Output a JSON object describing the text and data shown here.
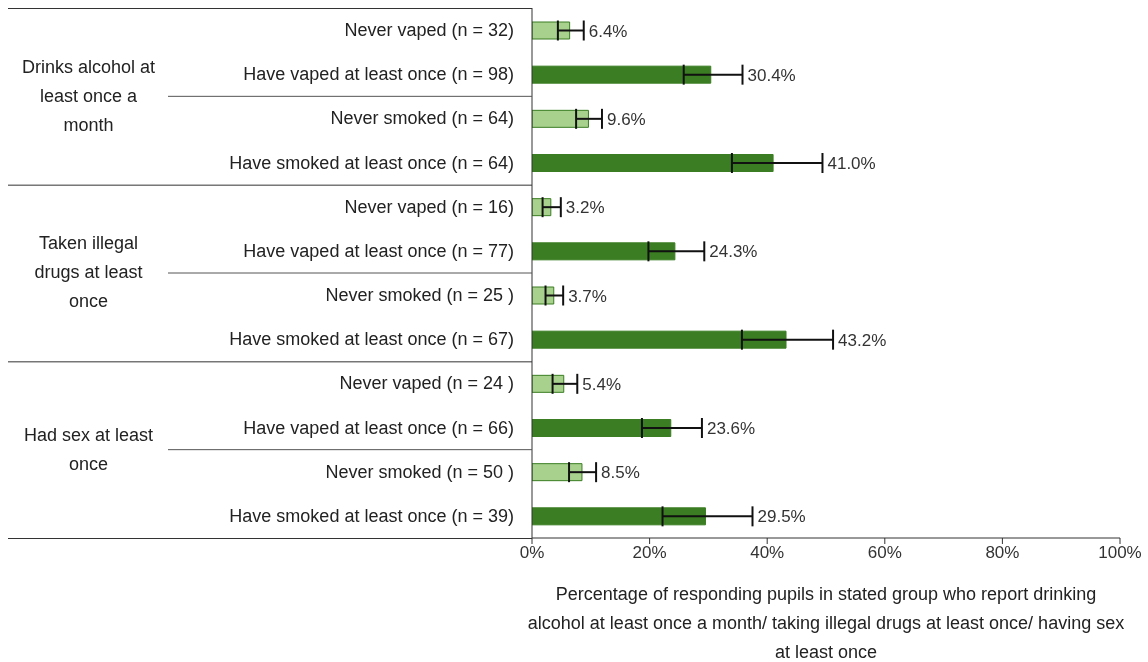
{
  "chart_data": {
    "type": "bar",
    "orientation": "horizontal",
    "xlabel": "Percentage of responding pupils in stated group who report drinking alcohol at least once a month/ taking illegal drugs at least once/ having sex at least once",
    "categories": [
      "Never vaped (n = 32)",
      "Have vaped at least once (n = 98)",
      "Never smoked (n = 64)",
      "Have smoked at least once (n = 64)",
      "Never vaped (n = 16)",
      "Have vaped at least once (n = 77)",
      "Never smoked (n = 25 )",
      "Have smoked at least once (n = 67)",
      "Never vaped (n = 24 )",
      "Have vaped at least once (n = 66)",
      "Never smoked (n = 50 )",
      "Have smoked at least once (n = 39)"
    ],
    "values": [
      6.4,
      30.4,
      9.6,
      41.0,
      3.2,
      24.3,
      3.7,
      43.2,
      5.4,
      23.6,
      8.5,
      29.5
    ],
    "value_labels": [
      "6.4%",
      "30.4%",
      "9.6%",
      "41.0%",
      "3.2%",
      "24.3%",
      "3.7%",
      "43.2%",
      "5.4%",
      "23.6%",
      "8.5%",
      "29.5%"
    ],
    "errors": [
      [
        4.4,
        8.8
      ],
      [
        25.8,
        35.8
      ],
      [
        7.5,
        11.9
      ],
      [
        34.0,
        49.4
      ],
      [
        1.8,
        4.9
      ],
      [
        19.8,
        29.3
      ],
      [
        2.3,
        5.3
      ],
      [
        35.7,
        51.2
      ],
      [
        3.5,
        7.7
      ],
      [
        18.7,
        28.9
      ],
      [
        6.3,
        10.9
      ],
      [
        22.2,
        37.5
      ]
    ],
    "colors": [
      "#a9d18e",
      "#3a7d22",
      "#a9d18e",
      "#3a7d22",
      "#a9d18e",
      "#3a7d22",
      "#a9d18e",
      "#3a7d22",
      "#a9d18e",
      "#3a7d22",
      "#a9d18e",
      "#3a7d22"
    ],
    "xlim": [
      0,
      100
    ],
    "xticks": [
      {
        "value": 0,
        "label": "0%"
      },
      {
        "value": 20,
        "label": "20%"
      },
      {
        "value": 40,
        "label": "40%"
      },
      {
        "value": 60,
        "label": "60%"
      },
      {
        "value": 80,
        "label": "80%"
      },
      {
        "value": 100,
        "label": "100%"
      }
    ],
    "annotations": [
      "Drinks alcohol at least once a month",
      "Taken illegal drugs at least once",
      "Had sex at least once"
    ],
    "grid": false,
    "legend": false
  }
}
